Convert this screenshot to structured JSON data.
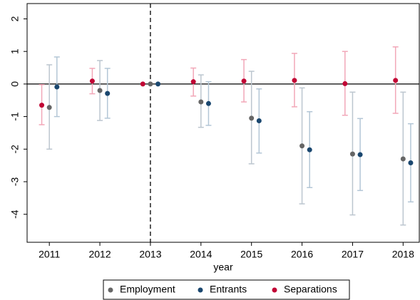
{
  "chart_data": {
    "type": "errorbar",
    "x": [
      2011,
      2012,
      2013,
      2014,
      2015,
      2016,
      2017,
      2018
    ],
    "xlabel": "year",
    "xlim": [
      2010.56,
      2018.32
    ],
    "xticks": [
      2011,
      2012,
      2013,
      2014,
      2015,
      2016,
      2017,
      2018
    ],
    "ylim": [
      -4.86,
      2.47
    ],
    "yticks": [
      -4,
      -3,
      -2,
      -1,
      0,
      1,
      2
    ],
    "hline": 0,
    "vline": 2013,
    "series": [
      {
        "name": "Employment",
        "color": "#666666",
        "ci_color": "#bcc6cf",
        "values": [
          -0.72,
          -0.2,
          0,
          -0.55,
          -1.05,
          -1.9,
          -2.15,
          -2.3
        ],
        "lower": [
          -2.0,
          -1.12,
          null,
          -1.33,
          -2.45,
          -3.68,
          -4.02,
          -4.33
        ],
        "upper": [
          0.59,
          0.72,
          null,
          0.28,
          0.39,
          -0.12,
          -0.25,
          -0.25
        ]
      },
      {
        "name": "Entrants",
        "color": "#1a476f",
        "ci_color": "#b3c6d6",
        "values": [
          -0.09,
          -0.29,
          0,
          -0.6,
          -1.13,
          -2.02,
          -2.17,
          -2.42
        ],
        "lower": [
          -1.0,
          -1.05,
          null,
          -1.27,
          -2.12,
          -3.18,
          -3.27,
          -3.62
        ],
        "upper": [
          0.83,
          0.48,
          null,
          0.07,
          -0.15,
          -0.85,
          -1.06,
          -1.22
        ]
      },
      {
        "name": "Separations",
        "color": "#c10534",
        "ci_color": "#f2a7b8",
        "values": [
          -0.65,
          0.09,
          0,
          0.07,
          0.09,
          0.11,
          0.01,
          0.11
        ],
        "lower": [
          -1.25,
          -0.3,
          null,
          -0.37,
          -0.55,
          -0.7,
          -0.96,
          -0.9
        ],
        "upper": [
          -0.02,
          0.48,
          null,
          0.49,
          0.75,
          0.94,
          1.0,
          1.14
        ]
      }
    ]
  }
}
